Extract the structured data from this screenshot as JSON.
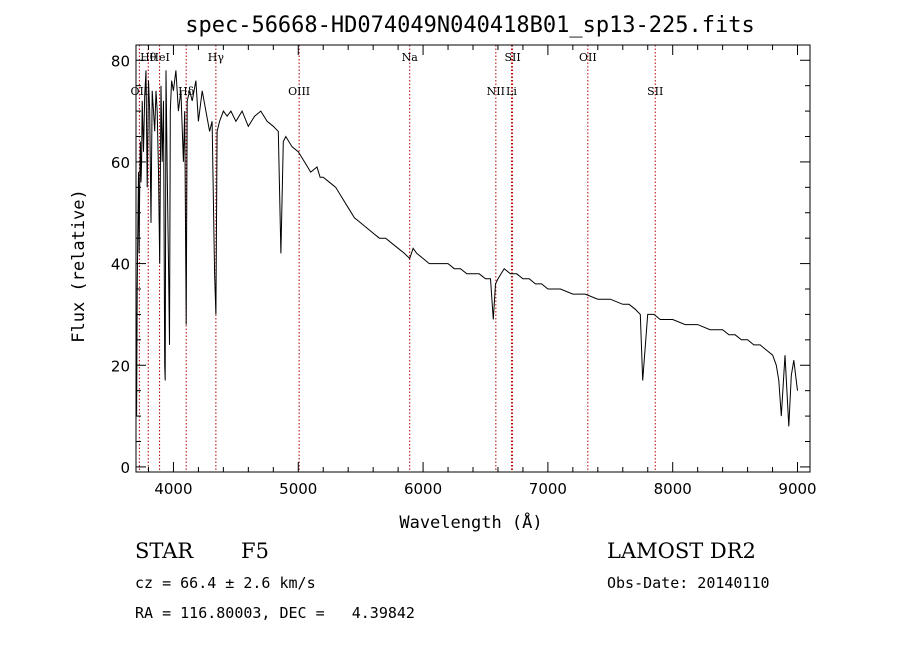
{
  "chart_data": {
    "type": "line",
    "title": "spec-56668-HD074049N040418B01_sp13-225.fits",
    "xlabel": "Wavelength (Å)",
    "ylabel": "Flux (relative)",
    "xlim": [
      3700,
      9100
    ],
    "ylim": [
      -1,
      83
    ],
    "xticks": [
      4000,
      5000,
      6000,
      7000,
      8000,
      9000
    ],
    "yticks": [
      0,
      20,
      40,
      60,
      80
    ],
    "grid": false,
    "series": [
      {
        "x": [
          3700,
          3705,
          3710,
          3715,
          3720,
          3725,
          3730,
          3735,
          3740,
          3745,
          3750,
          3760,
          3770,
          3780,
          3790,
          3800,
          3810,
          3820,
          3830,
          3840,
          3850,
          3860,
          3870,
          3880,
          3890,
          3900,
          3910,
          3920,
          3930,
          3934,
          3940,
          3950,
          3960,
          3968,
          3975,
          3985,
          4000,
          4020,
          4040,
          4060,
          4080,
          4090,
          4102,
          4110,
          4130,
          4150,
          4180,
          4200,
          4230,
          4260,
          4290,
          4310,
          4330,
          4340,
          4350,
          4370,
          4400,
          4430,
          4460,
          4500,
          4550,
          4600,
          4650,
          4700,
          4750,
          4800,
          4840,
          4861,
          4880,
          4900,
          4950,
          5000,
          5050,
          5100,
          5150,
          5175,
          5200,
          5250,
          5300,
          5350,
          5400,
          5450,
          5500,
          5550,
          5600,
          5650,
          5700,
          5750,
          5800,
          5850,
          5893,
          5920,
          5950,
          6000,
          6050,
          6100,
          6150,
          6200,
          6250,
          6300,
          6350,
          6400,
          6450,
          6500,
          6540,
          6563,
          6580,
          6600,
          6650,
          6700,
          6750,
          6800,
          6850,
          6900,
          6950,
          7000,
          7100,
          7200,
          7300,
          7400,
          7500,
          7600,
          7650,
          7700,
          7740,
          7760,
          7800,
          7850,
          7900,
          7950,
          8000,
          8100,
          8200,
          8300,
          8400,
          8450,
          8500,
          8550,
          8600,
          8650,
          8700,
          8750,
          8800,
          8830,
          8850,
          8870,
          8900,
          8930,
          8950,
          8970,
          9000
        ],
        "y": [
          22,
          10,
          35,
          48,
          58,
          42,
          55,
          64,
          56,
          60,
          72,
          62,
          73,
          78,
          55,
          76,
          70,
          48,
          74,
          70,
          66,
          74,
          70,
          58,
          40,
          75,
          60,
          72,
          20,
          17,
          78,
          58,
          40,
          24,
          70,
          76,
          74,
          78,
          70,
          74,
          60,
          70,
          28,
          72,
          74,
          72,
          76,
          68,
          74,
          70,
          66,
          68,
          38,
          30,
          66,
          68,
          70,
          69,
          70,
          68,
          70,
          67,
          69,
          70,
          68,
          67,
          66,
          42,
          64,
          65,
          63,
          62,
          60,
          58,
          59,
          57,
          57,
          56,
          55,
          53,
          51,
          49,
          48,
          47,
          46,
          45,
          45,
          44,
          43,
          42,
          41,
          43,
          42,
          41,
          40,
          40,
          40,
          40,
          39,
          39,
          38,
          38,
          38,
          37,
          37,
          29,
          36,
          37,
          39,
          38,
          38,
          37,
          37,
          36,
          36,
          35,
          35,
          34,
          34,
          33,
          33,
          32,
          32,
          31,
          30,
          17,
          30,
          30,
          29,
          29,
          29,
          28,
          28,
          27,
          27,
          26,
          26,
          25,
          25,
          24,
          24,
          23,
          22,
          20,
          17,
          10,
          22,
          8,
          18,
          21,
          15
        ]
      }
    ],
    "line_markers": [
      {
        "label": "Hθ",
        "x": 3798
      },
      {
        "label": "OII",
        "x": 3727
      },
      {
        "label": "HeI",
        "x": 3889
      },
      {
        "label": "Hδ",
        "x": 4102
      },
      {
        "label": "Hγ",
        "x": 4340
      },
      {
        "label": "OIII",
        "x": 5007
      },
      {
        "label": "Na",
        "x": 5893
      },
      {
        "label": "NII",
        "x": 6583
      },
      {
        "label": "SII",
        "x": 6717
      },
      {
        "label": "Li",
        "x": 6708
      },
      {
        "label": "OII",
        "x": 7320
      },
      {
        "label": "SII",
        "x": 7860
      }
    ]
  },
  "info": {
    "object_type": "STAR",
    "subclass": "F5",
    "survey": "LAMOST DR2",
    "redshift": "cz = 66.4 ± 2.6 km/s",
    "obs_date": "Obs-Date: 20140110",
    "coords": "RA = 116.80003, DEC =   4.39842"
  },
  "colors": {
    "spectrum": "#000000",
    "marker_line": "#b00000",
    "background": "#ffffff"
  }
}
